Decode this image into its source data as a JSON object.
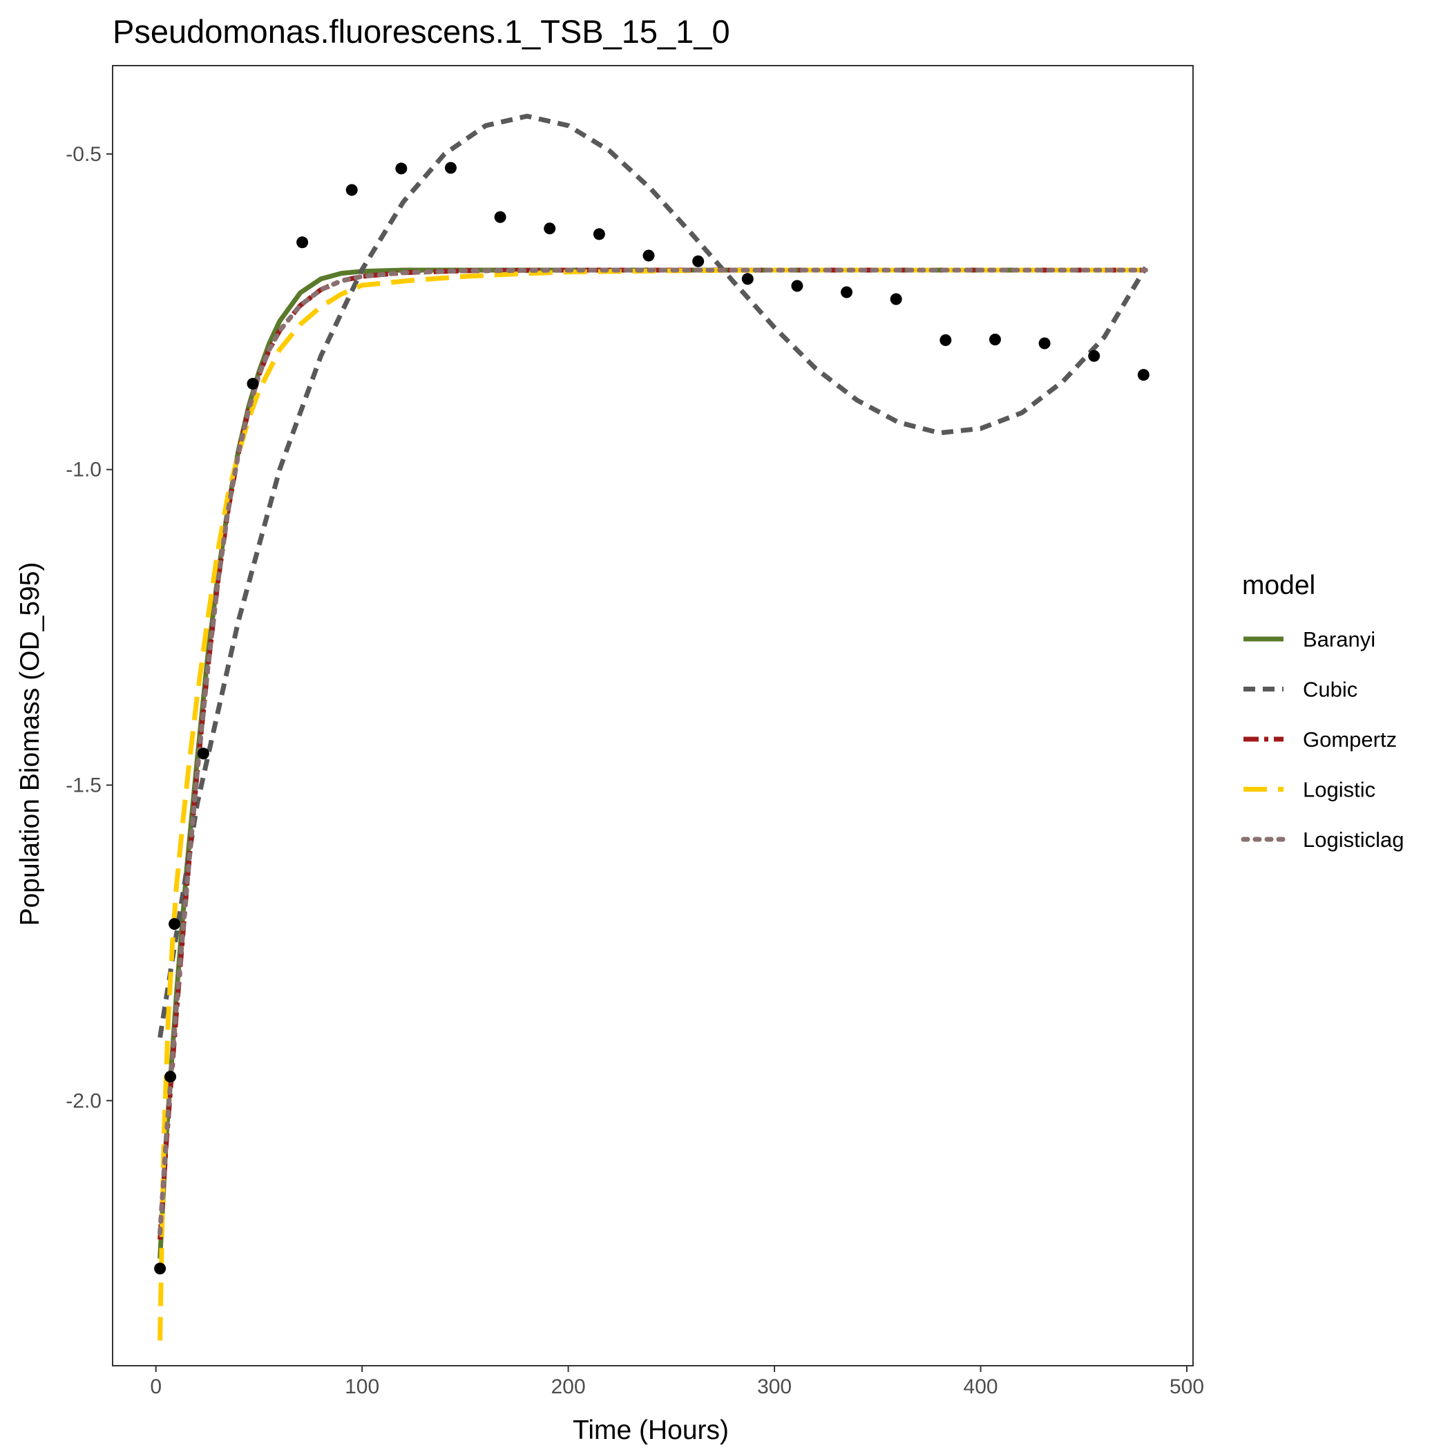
{
  "chart_data": {
    "type": "line",
    "title": "Pseudomonas.fluorescens.1_TSB_15_1_0",
    "xlabel": "Time (Hours)",
    "ylabel": "Population Biomass (OD_595)",
    "xlim": [
      -21,
      503
    ],
    "ylim": [
      -2.42,
      -0.36
    ],
    "x_ticks": [
      0,
      100,
      200,
      300,
      400,
      500
    ],
    "x_tick_labels": [
      "0",
      "100",
      "200",
      "300",
      "400",
      "500"
    ],
    "y_ticks": [
      -2.0,
      -1.5,
      -1.0,
      -0.5
    ],
    "y_tick_labels": [
      "-2.0",
      "-1.5",
      "-1.0",
      "-0.5"
    ],
    "grid": false,
    "legend": {
      "title": "model",
      "placement": "right",
      "entries": [
        "Baranyi",
        "Cubic",
        "Gompertz",
        "Logistic",
        "Logisticlag"
      ]
    },
    "points": {
      "x": [
        2,
        7,
        9,
        23,
        47,
        71,
        95,
        119,
        143,
        167,
        191,
        215,
        239,
        263,
        287,
        311,
        335,
        359,
        383,
        407,
        431,
        455,
        479
      ],
      "y": [
        -2.266,
        -1.962,
        -1.72,
        -1.45,
        -0.864,
        -0.64,
        -0.557,
        -0.523,
        -0.522,
        -0.6,
        -0.618,
        -0.627,
        -0.661,
        -0.67,
        -0.698,
        -0.709,
        -0.719,
        -0.73,
        -0.795,
        -0.794,
        -0.8,
        -0.82,
        -0.85
      ]
    },
    "series": [
      {
        "name": "Baranyi",
        "color": "#5a7a2b",
        "dash": "solid",
        "x": [
          2,
          5,
          10,
          15,
          20,
          25,
          30,
          35,
          40,
          45,
          50,
          55,
          60,
          70,
          80,
          90,
          100,
          120,
          150,
          200,
          300,
          400,
          480
        ],
        "y": [
          -2.25,
          -2.06,
          -1.83,
          -1.63,
          -1.46,
          -1.3,
          -1.17,
          -1.06,
          -0.97,
          -0.9,
          -0.845,
          -0.8,
          -0.765,
          -0.72,
          -0.698,
          -0.689,
          -0.686,
          -0.684,
          -0.684,
          -0.684,
          -0.684,
          -0.684,
          -0.684
        ]
      },
      {
        "name": "Cubic",
        "color": "#595959",
        "dash": "dashed",
        "x": [
          2,
          20,
          40,
          60,
          80,
          100,
          120,
          140,
          160,
          180,
          200,
          220,
          240,
          260,
          280,
          300,
          320,
          340,
          360,
          380,
          400,
          420,
          440,
          460,
          480
        ],
        "y": [
          -1.9,
          -1.53,
          -1.24,
          -1.0,
          -0.82,
          -0.683,
          -0.576,
          -0.5,
          -0.455,
          -0.44,
          -0.455,
          -0.495,
          -0.555,
          -0.627,
          -0.702,
          -0.775,
          -0.84,
          -0.89,
          -0.925,
          -0.942,
          -0.935,
          -0.91,
          -0.86,
          -0.79,
          -0.68
        ]
      },
      {
        "name": "Gompertz",
        "color": "#9e1a1a",
        "dash": "dashdot",
        "x": [
          2,
          5,
          10,
          15,
          20,
          25,
          30,
          35,
          40,
          45,
          50,
          55,
          60,
          70,
          80,
          90,
          100,
          120,
          150,
          200,
          300,
          400,
          480
        ],
        "y": [
          -2.22,
          -2.07,
          -1.86,
          -1.66,
          -1.48,
          -1.32,
          -1.18,
          -1.065,
          -0.975,
          -0.905,
          -0.85,
          -0.81,
          -0.78,
          -0.74,
          -0.715,
          -0.701,
          -0.694,
          -0.688,
          -0.685,
          -0.684,
          -0.684,
          -0.684,
          -0.684
        ]
      },
      {
        "name": "Logistic",
        "color": "#ffcc00",
        "dash": "longdash",
        "x": [
          2,
          3,
          4,
          6,
          8,
          10,
          13,
          16,
          20,
          25,
          30,
          35,
          40,
          45,
          50,
          60,
          70,
          80,
          90,
          100,
          125,
          150,
          175,
          200,
          250,
          300,
          350,
          400,
          480
        ],
        "y": [
          -2.38,
          -2.2,
          -2.05,
          -1.87,
          -1.75,
          -1.66,
          -1.56,
          -1.47,
          -1.36,
          -1.24,
          -1.13,
          -1.04,
          -0.975,
          -0.92,
          -0.875,
          -0.81,
          -0.77,
          -0.742,
          -0.722,
          -0.708,
          -0.7,
          -0.694,
          -0.69,
          -0.687,
          -0.685,
          -0.684,
          -0.684,
          -0.684,
          -0.684
        ]
      },
      {
        "name": "Logisticlag",
        "color": "#8a7070",
        "dash": "dotted",
        "x": [
          2,
          5,
          10,
          15,
          20,
          25,
          30,
          35,
          40,
          45,
          50,
          55,
          60,
          70,
          80,
          90,
          100,
          120,
          150,
          200,
          300,
          400,
          480
        ],
        "y": [
          -2.21,
          -2.06,
          -1.85,
          -1.66,
          -1.48,
          -1.32,
          -1.18,
          -1.065,
          -0.975,
          -0.905,
          -0.85,
          -0.81,
          -0.78,
          -0.74,
          -0.715,
          -0.701,
          -0.694,
          -0.688,
          -0.685,
          -0.684,
          -0.684,
          -0.684,
          -0.684
        ]
      }
    ]
  }
}
